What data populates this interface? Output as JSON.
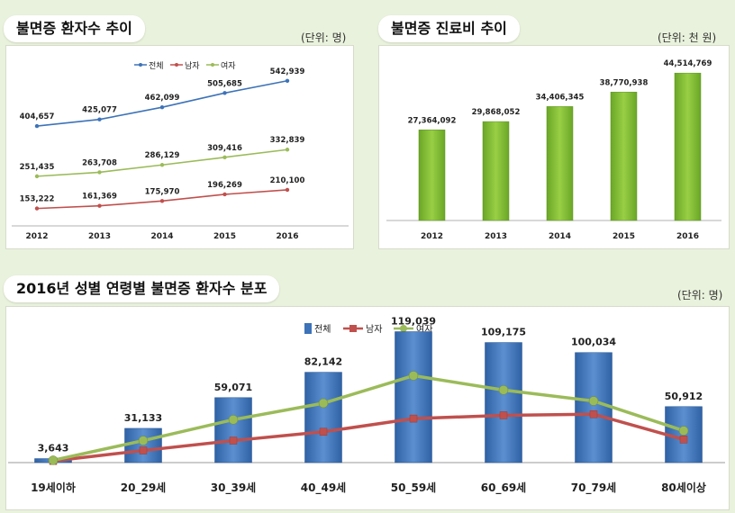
{
  "colors": {
    "total": "#3d73b8",
    "male": "#c0504d",
    "female": "#9bbb59",
    "bar_green": "#7fba2d",
    "bar_blue": "#3d73b8"
  },
  "panel1": {
    "title": "불면증 환자수 추이",
    "unit": "(단위: 명)"
  },
  "panel2": {
    "title": "불면증 진료비 추이",
    "unit": "(단위: 천 원)"
  },
  "panel3": {
    "title": "2016년 성별 연령별 불면증 환자수 분포",
    "unit": "(단위: 명)"
  },
  "chart_data": [
    {
      "type": "line",
      "title": "불면증 환자수 추이",
      "x": [
        "2012",
        "2013",
        "2014",
        "2015",
        "2016"
      ],
      "series": [
        {
          "name": "전체",
          "values": [
            404657,
            425077,
            462099,
            505685,
            542939
          ]
        },
        {
          "name": "남자",
          "values": [
            153222,
            161369,
            175970,
            196269,
            210100
          ]
        },
        {
          "name": "여자",
          "values": [
            251435,
            263708,
            286129,
            309416,
            332839
          ]
        }
      ],
      "value_labels": {
        "전체": [
          "404,657",
          "425,077",
          "462,099",
          "505,685",
          "542,939"
        ],
        "남자": [
          "153,222",
          "161,369",
          "175,970",
          "196,269",
          "210,100"
        ],
        "여자": [
          "251,435",
          "263,708",
          "286,129",
          "309,416",
          "332,839"
        ]
      },
      "legend": "top-center",
      "grid": false
    },
    {
      "type": "bar",
      "title": "불면증 진료비 추이",
      "categories": [
        "2012",
        "2013",
        "2014",
        "2015",
        "2016"
      ],
      "values": [
        27364092,
        29868052,
        34406345,
        38770938,
        44514769
      ],
      "value_labels": [
        "27,364,092",
        "29,868,052",
        "34,406,345",
        "38,770,938",
        "44,514,769"
      ],
      "grid": false
    },
    {
      "type": "bar",
      "title": "2016년 성별 연령별 불면증 환자수 분포",
      "categories": [
        "19세이하",
        "20_29세",
        "30_39세",
        "40_49세",
        "50_59세",
        "60_69세",
        "70_79세",
        "80세이상"
      ],
      "series": [
        {
          "name": "전체",
          "type": "bar",
          "values": [
            3643,
            31133,
            59071,
            82142,
            119039,
            109175,
            100034,
            50912
          ]
        },
        {
          "name": "남자",
          "type": "line",
          "values": [
            1500,
            11000,
            20000,
            28000,
            40000,
            43000,
            44000,
            21000
          ]
        },
        {
          "name": "여자",
          "type": "line",
          "values": [
            2100,
            20000,
            39000,
            54000,
            79000,
            66000,
            56000,
            29000
          ]
        }
      ],
      "value_labels": [
        "3,643",
        "31,133",
        "59,071",
        "82,142",
        "119,039",
        "109,175",
        "100,034",
        "50,912"
      ],
      "legend": "top-center",
      "grid": false
    }
  ]
}
